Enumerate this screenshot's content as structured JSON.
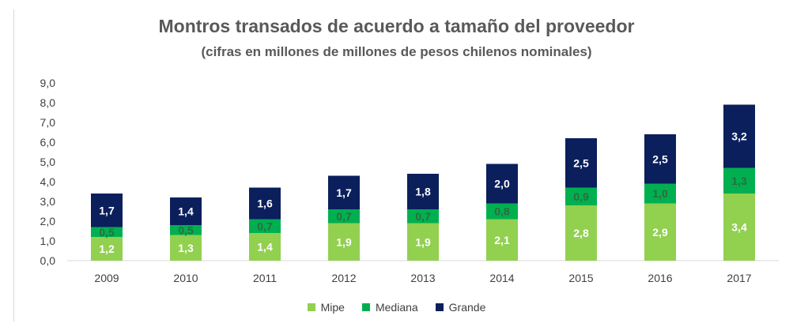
{
  "chart_data": {
    "type": "bar",
    "stacked": true,
    "title": "Montros transados de acuerdo a tamaño del proveedor",
    "subtitle": "(cifras en millones de millones de pesos chilenos nominales)",
    "categories": [
      "2009",
      "2010",
      "2011",
      "2012",
      "2013",
      "2014",
      "2015",
      "2016",
      "2017"
    ],
    "series": [
      {
        "name": "Mipe",
        "color": "#92d050",
        "values": [
          1.2,
          1.3,
          1.4,
          1.9,
          1.9,
          2.1,
          2.8,
          2.9,
          3.4
        ],
        "labels": [
          "1,2",
          "1,3",
          "1,4",
          "1,9",
          "1,9",
          "2,1",
          "2,8",
          "2,9",
          "3,4"
        ]
      },
      {
        "name": "Mediana",
        "color": "#00b050",
        "values": [
          0.5,
          0.5,
          0.7,
          0.7,
          0.7,
          0.8,
          0.9,
          1.0,
          1.3
        ],
        "labels": [
          "0,5",
          "0,5",
          "0,7",
          "0,7",
          "0,7",
          "0,8",
          "0,9",
          "1,0",
          "1,3"
        ]
      },
      {
        "name": "Grande",
        "color": "#0b1f5c",
        "values": [
          1.7,
          1.4,
          1.6,
          1.7,
          1.8,
          2.0,
          2.5,
          2.5,
          3.2
        ],
        "labels": [
          "1,7",
          "1,4",
          "1,6",
          "1,7",
          "1,8",
          "2,0",
          "2,5",
          "2,5",
          "3,2"
        ]
      }
    ],
    "ylim": [
      0,
      9
    ],
    "yticks": [
      "0,0",
      "1,0",
      "2,0",
      "3,0",
      "4,0",
      "5,0",
      "6,0",
      "7,0",
      "8,0",
      "9,0"
    ],
    "grid": false,
    "legend": "bottom"
  }
}
